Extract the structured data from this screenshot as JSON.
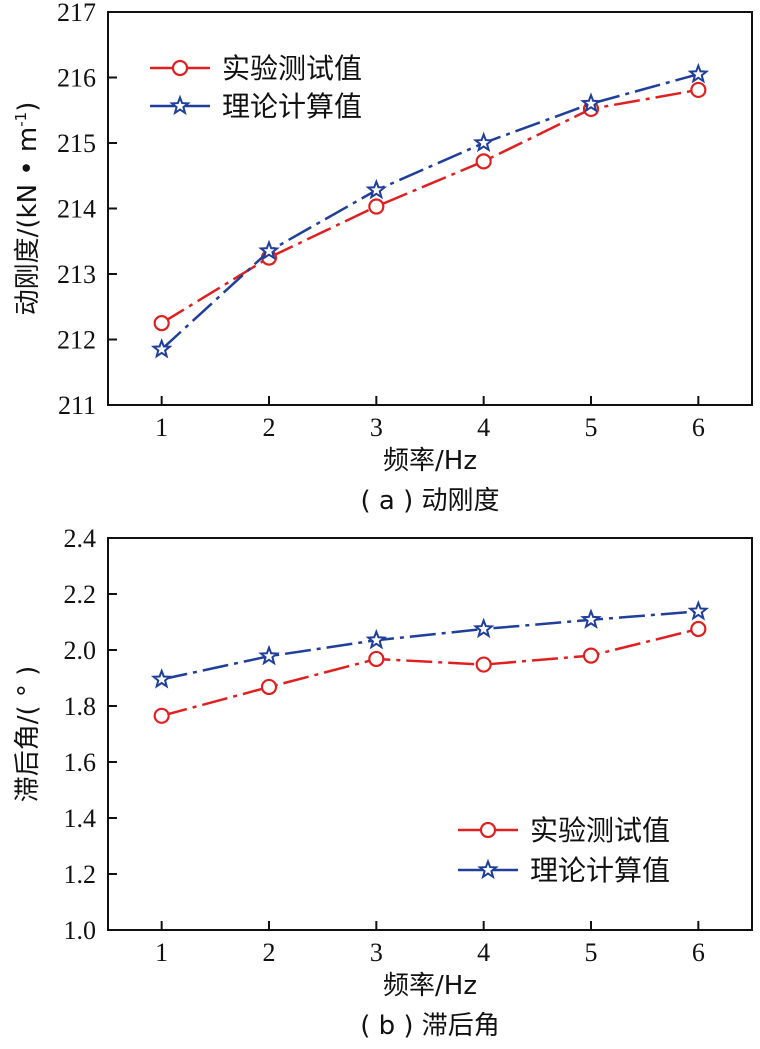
{
  "chart_data": [
    {
      "type": "line",
      "caption": "( a ) 动刚度",
      "xlabel": "频率/Hz",
      "ylabel": "动刚度/(kN • m",
      "ylabel_sup": "-1",
      "ylabel_close": ")",
      "x": [
        1,
        2,
        3,
        4,
        5,
        6
      ],
      "xlim": [
        0.5,
        6.5
      ],
      "ylim": [
        211,
        217
      ],
      "yticks": [
        211,
        212,
        213,
        214,
        215,
        216,
        217
      ],
      "ytick_labels": [
        "211",
        "212",
        "213",
        "214",
        "215",
        "216",
        "217"
      ],
      "legend_position": "top-left",
      "grid": false,
      "series": [
        {
          "name": "实验测试值",
          "values": [
            212.25,
            213.25,
            214.03,
            214.72,
            215.52,
            215.81
          ],
          "color": "#e02020",
          "marker": "circle",
          "line_style": "dash-dot"
        },
        {
          "name": "理论计算值",
          "values": [
            211.85,
            213.35,
            214.28,
            215.0,
            215.6,
            216.05
          ],
          "color": "#1f3f9a",
          "marker": "star",
          "line_style": "dash-dot"
        }
      ]
    },
    {
      "type": "line",
      "caption": "( b ) 滞后角",
      "xlabel": "频率/Hz",
      "ylabel": "滞后角/( ° )",
      "x": [
        1,
        2,
        3,
        4,
        5,
        6
      ],
      "xlim": [
        0.5,
        6.5
      ],
      "ylim": [
        1.0,
        2.4
      ],
      "yticks": [
        1.0,
        1.2,
        1.4,
        1.6,
        1.8,
        2.0,
        2.2,
        2.4
      ],
      "ytick_labels": [
        "1.0",
        "1.2",
        "1.4",
        "1.6",
        "1.8",
        "2.0",
        "2.2",
        "2.4"
      ],
      "legend_position": "bottom-right",
      "grid": false,
      "series": [
        {
          "name": "实验测试值",
          "values": [
            1.765,
            1.868,
            1.968,
            1.948,
            1.98,
            2.075
          ],
          "color": "#e02020",
          "marker": "circle",
          "line_style": "dash-dot"
        },
        {
          "name": "理论计算值",
          "values": [
            1.895,
            1.978,
            2.035,
            2.075,
            2.108,
            2.138
          ],
          "color": "#1f3f9a",
          "marker": "star",
          "line_style": "dash-dot"
        }
      ]
    }
  ]
}
